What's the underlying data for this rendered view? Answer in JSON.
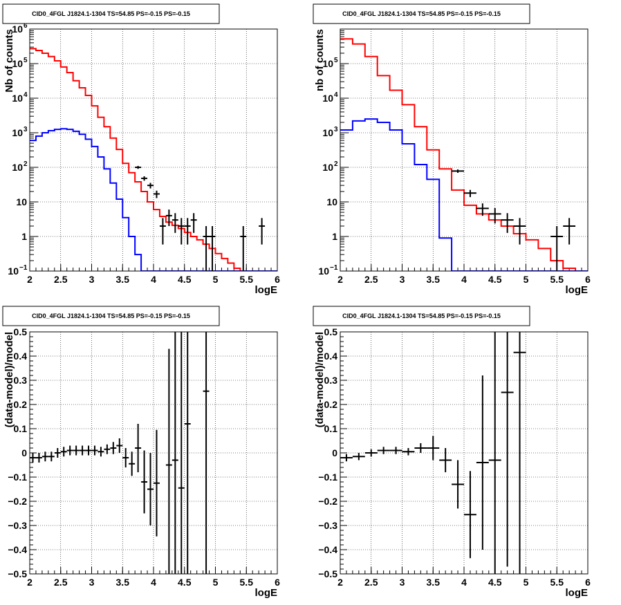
{
  "chart_data": [
    {
      "type": "line",
      "title": "CID0_4FGL J1824.1-1304 TS=54.85 PS=-0.15 PS=-0.15",
      "xlabel": "logE",
      "ylabel": "Nb of counts",
      "xlim": [
        2,
        6
      ],
      "ylim": [
        0.1,
        1000000
      ],
      "yscale": "log",
      "grid": true,
      "x_ticks": [
        "2",
        "2.5",
        "3",
        "3.5",
        "4",
        "4.5",
        "5",
        "5.5",
        "6"
      ],
      "y_ticks": [
        {
          "v": 0.1,
          "base": "10",
          "exp": "−1"
        },
        {
          "v": 1,
          "base": "1"
        },
        {
          "v": 10,
          "base": "10"
        },
        {
          "v": 100,
          "base": "10",
          "exp": "2"
        },
        {
          "v": 1000,
          "base": "10",
          "exp": "3"
        },
        {
          "v": 10000,
          "base": "10",
          "exp": "4"
        },
        {
          "v": 100000,
          "base": "10",
          "exp": "5"
        },
        {
          "v": 1000000,
          "base": "10",
          "exp": "6"
        }
      ],
      "bin_edges": [
        2.0,
        2.1,
        2.2,
        2.3,
        2.4,
        2.5,
        2.6,
        2.7,
        2.8,
        2.9,
        3.0,
        3.1,
        3.2,
        3.3,
        3.4,
        3.5,
        3.6,
        3.7,
        3.8,
        3.9,
        4.0,
        4.1,
        4.2,
        4.3,
        4.4,
        4.5,
        4.6,
        4.7,
        4.8,
        4.9,
        5.0,
        5.1,
        5.2,
        5.3,
        5.4,
        5.5,
        5.6,
        5.7,
        5.8,
        5.9,
        6.0
      ],
      "series": [
        {
          "role": "total model",
          "color": "#ff0000",
          "style": "step",
          "values": [
            270000,
            240000,
            200000,
            160000,
            120000,
            80000,
            55000,
            32000,
            20000,
            12000,
            6000,
            2800,
            1500,
            700,
            330,
            130,
            70,
            38,
            20,
            10,
            6,
            3.8,
            2.6,
            2.1,
            1.7,
            1.3,
            1.0,
            0.8,
            0.6,
            0.45,
            0.32,
            0.23,
            0.17,
            0.12,
            0.1,
            0.1,
            0.1,
            0.1,
            0.1,
            0.1
          ]
        },
        {
          "role": "source model",
          "color": "#0000ff",
          "style": "step",
          "values": [
            600,
            800,
            1000,
            1150,
            1250,
            1300,
            1250,
            1100,
            900,
            650,
            400,
            200,
            90,
            35,
            12,
            3.5,
            1.0,
            0.3,
            0.1,
            0.1,
            0.1,
            0.1,
            0.1,
            0.1,
            0.1,
            0.1,
            0.1,
            0.1,
            0.1,
            0.1,
            0.1,
            0.1,
            0.1,
            0.1,
            0.1,
            0.1,
            0.1,
            0.1,
            0.1,
            0.1
          ]
        },
        {
          "role": "data",
          "color": "#000000",
          "style": "errorbar",
          "points": [
            [
              3.75,
              100
            ],
            [
              3.85,
              48
            ],
            [
              3.95,
              30
            ],
            [
              4.05,
              17
            ],
            [
              4.15,
              2
            ],
            [
              4.25,
              4
            ],
            [
              4.35,
              3
            ],
            [
              4.45,
              2
            ],
            [
              4.55,
              2
            ],
            [
              4.65,
              3
            ],
            [
              4.85,
              1
            ],
            [
              4.95,
              1
            ],
            [
              5.45,
              1
            ],
            [
              5.75,
              2
            ]
          ],
          "xerr": 0.05,
          "yerr_scale": 1
        }
      ]
    },
    {
      "type": "line",
      "title": "CID0_4FGL J1824.1-1304 TS=54.85 PS=-0.15 PS=-0.15",
      "xlabel": "logE",
      "ylabel": "nb of counts",
      "xlim": [
        2,
        6
      ],
      "ylim": [
        0.1,
        1000000
      ],
      "yscale": "log",
      "grid": true,
      "x_ticks": [
        "2",
        "2.5",
        "3",
        "3.5",
        "4",
        "4.5",
        "5",
        "5.5",
        "6"
      ],
      "y_ticks": [
        {
          "v": 0.1,
          "base": "10",
          "exp": "−1"
        },
        {
          "v": 1,
          "base": "1"
        },
        {
          "v": 10,
          "base": "10"
        },
        {
          "v": 100,
          "base": "10",
          "exp": "2"
        },
        {
          "v": 1000,
          "base": "10",
          "exp": "3"
        },
        {
          "v": 10000,
          "base": "10",
          "exp": "4"
        },
        {
          "v": 100000,
          "base": "10",
          "exp": "5"
        }
      ],
      "bin_edges": [
        2.0,
        2.2,
        2.4,
        2.6,
        2.8,
        3.0,
        3.2,
        3.4,
        3.6,
        3.8,
        4.0,
        4.2,
        4.4,
        4.6,
        4.8,
        5.0,
        5.2,
        5.4,
        5.6,
        5.8,
        6.0
      ],
      "series": [
        {
          "role": "total model",
          "color": "#ff0000",
          "style": "step",
          "values": [
            520000,
            370000,
            160000,
            45000,
            17000,
            6500,
            1500,
            320,
            90,
            22,
            8,
            4.5,
            3,
            2,
            1.2,
            0.8,
            0.45,
            0.2,
            0.12,
            0.1
          ]
        },
        {
          "role": "source model",
          "color": "#0000ff",
          "style": "step",
          "values": [
            1200,
            2200,
            2500,
            2000,
            1200,
            480,
            120,
            45,
            0.9,
            0.1,
            0.1,
            0.1,
            0.1,
            0.1,
            0.1,
            0.1,
            0.1,
            0.1,
            0.1,
            0.1
          ]
        },
        {
          "role": "data",
          "color": "#000000",
          "style": "errorbar",
          "points": [
            [
              3.9,
              78
            ],
            [
              4.1,
              18
            ],
            [
              4.3,
              6.5
            ],
            [
              4.5,
              4.5
            ],
            [
              4.7,
              3
            ],
            [
              4.9,
              2
            ],
            [
              5.5,
              1
            ],
            [
              5.7,
              2
            ]
          ],
          "xerr": 0.1,
          "yerr_scale": 1
        }
      ]
    },
    {
      "type": "scatter",
      "title": "CID0_4FGL J1824.1-1304 TS=54.85 PS=-0.15 PS=-0.15",
      "xlabel": "logE",
      "ylabel": "(data-model)/model",
      "xlim": [
        2,
        6
      ],
      "ylim": [
        -0.5,
        0.5
      ],
      "grid": true,
      "x_ticks": [
        "2",
        "2.5",
        "3",
        "3.5",
        "4",
        "4.5",
        "5",
        "5.5",
        "6"
      ],
      "y_ticks": [
        "−0.5",
        "−0.4",
        "−0.3",
        "−0.2",
        "−0.1",
        "0",
        "0.1",
        "0.2",
        "0.3",
        "0.4",
        "0.5"
      ],
      "xerr": 0.05,
      "points": [
        {
          "x": 2.05,
          "y": -0.02,
          "err": 0.02
        },
        {
          "x": 2.15,
          "y": -0.02,
          "err": 0.02
        },
        {
          "x": 2.25,
          "y": -0.015,
          "err": 0.02
        },
        {
          "x": 2.35,
          "y": -0.015,
          "err": 0.02
        },
        {
          "x": 2.45,
          "y": 0.0,
          "err": 0.02
        },
        {
          "x": 2.55,
          "y": 0.005,
          "err": 0.02
        },
        {
          "x": 2.65,
          "y": 0.01,
          "err": 0.02
        },
        {
          "x": 2.75,
          "y": 0.01,
          "err": 0.02
        },
        {
          "x": 2.85,
          "y": 0.01,
          "err": 0.02
        },
        {
          "x": 2.95,
          "y": 0.01,
          "err": 0.02
        },
        {
          "x": 3.05,
          "y": 0.01,
          "err": 0.02
        },
        {
          "x": 3.15,
          "y": 0.005,
          "err": 0.02
        },
        {
          "x": 3.25,
          "y": 0.015,
          "err": 0.02
        },
        {
          "x": 3.35,
          "y": 0.02,
          "err": 0.025
        },
        {
          "x": 3.45,
          "y": 0.03,
          "err": 0.03
        },
        {
          "x": 3.55,
          "y": -0.02,
          "err": 0.04
        },
        {
          "x": 3.65,
          "y": -0.045,
          "err": 0.05
        },
        {
          "x": 3.75,
          "y": 0.02,
          "err": 0.1
        },
        {
          "x": 3.85,
          "y": -0.12,
          "err": 0.13
        },
        {
          "x": 3.95,
          "y": -0.15,
          "err": 0.15
        },
        {
          "x": 4.05,
          "y": -0.125,
          "err": 0.22
        },
        {
          "x": 4.25,
          "y": -0.05,
          "err": 0.48
        },
        {
          "x": 4.35,
          "y": -0.03,
          "err": 0.6
        },
        {
          "x": 4.45,
          "y": -0.145,
          "err": 0.7
        },
        {
          "x": 4.55,
          "y": 0.12,
          "err": 0.9
        },
        {
          "x": 4.85,
          "y": 0.255,
          "err": 1.0
        }
      ]
    },
    {
      "type": "scatter",
      "title": "CID0_4FGL J1824.1-1304 TS=54.85 PS=-0.15 PS=-0.15",
      "xlabel": "logE",
      "ylabel": "(data-model)/model",
      "xlim": [
        2,
        6
      ],
      "ylim": [
        -0.5,
        0.5
      ],
      "grid": true,
      "x_ticks": [
        "2",
        "2.5",
        "3",
        "3.5",
        "4",
        "4.5",
        "5",
        "5.5",
        "6"
      ],
      "y_ticks": [
        "−0.5",
        "−0.4",
        "−0.3",
        "−0.2",
        "−0.1",
        "0",
        "0.1",
        "0.2",
        "0.3",
        "0.4",
        "0.5"
      ],
      "xerr": 0.1,
      "points": [
        {
          "x": 2.1,
          "y": -0.02,
          "err": 0.015
        },
        {
          "x": 2.3,
          "y": -0.015,
          "err": 0.015
        },
        {
          "x": 2.5,
          "y": 0.0,
          "err": 0.015
        },
        {
          "x": 2.7,
          "y": 0.01,
          "err": 0.015
        },
        {
          "x": 2.9,
          "y": 0.01,
          "err": 0.015
        },
        {
          "x": 3.1,
          "y": 0.005,
          "err": 0.015
        },
        {
          "x": 3.3,
          "y": 0.02,
          "err": 0.02
        },
        {
          "x": 3.5,
          "y": 0.02,
          "err": 0.05
        },
        {
          "x": 3.7,
          "y": -0.03,
          "err": 0.05
        },
        {
          "x": 3.9,
          "y": -0.13,
          "err": 0.1
        },
        {
          "x": 4.1,
          "y": -0.255,
          "err": 0.18
        },
        {
          "x": 4.3,
          "y": -0.04,
          "err": 0.36
        },
        {
          "x": 4.5,
          "y": -0.03,
          "err": 0.55
        },
        {
          "x": 4.7,
          "y": 0.25,
          "err": 0.72
        },
        {
          "x": 4.9,
          "y": 0.415,
          "err": 1.0
        }
      ]
    }
  ]
}
